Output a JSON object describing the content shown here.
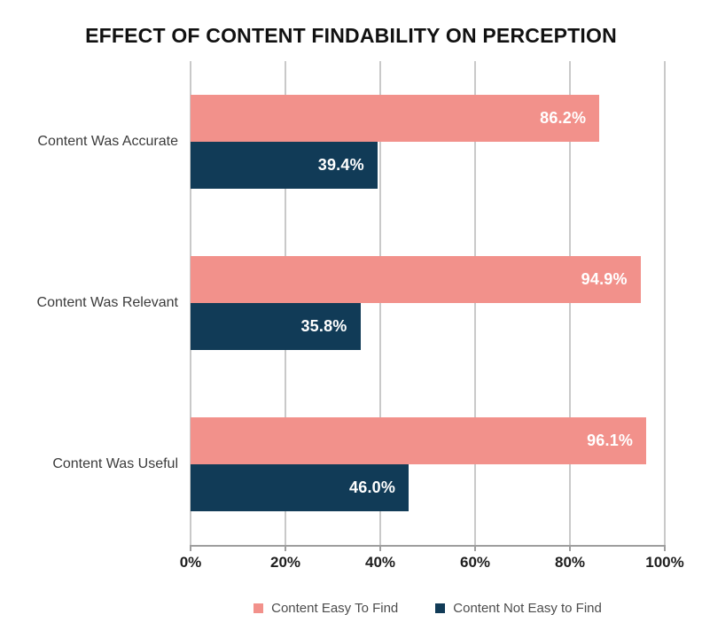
{
  "title": "EFFECT OF CONTENT FINDABILITY ON PERCEPTION",
  "chart_data": {
    "type": "bar",
    "orientation": "horizontal",
    "title": "EFFECT OF CONTENT FINDABILITY ON PERCEPTION",
    "categories": [
      "Content Was Accurate",
      "Content Was Relevant",
      "Content Was Useful"
    ],
    "series": [
      {
        "name": "Content Easy To Find",
        "color": "#F2918B",
        "values": [
          86.2,
          94.9,
          96.1
        ]
      },
      {
        "name": "Content Not Easy to Find",
        "color": "#113B57",
        "values": [
          39.4,
          35.8,
          46.0
        ]
      }
    ],
    "value_label_format": "0.0%",
    "xlabel": "",
    "ylabel": "",
    "xlim": [
      0,
      100
    ],
    "x_ticks": [
      "0%",
      "20%",
      "40%",
      "60%",
      "80%",
      "100%"
    ],
    "grid": "vertical",
    "gridline_color": "#c9c9c9",
    "axis_color": "#9e9e9e",
    "legend_position": "bottom"
  }
}
